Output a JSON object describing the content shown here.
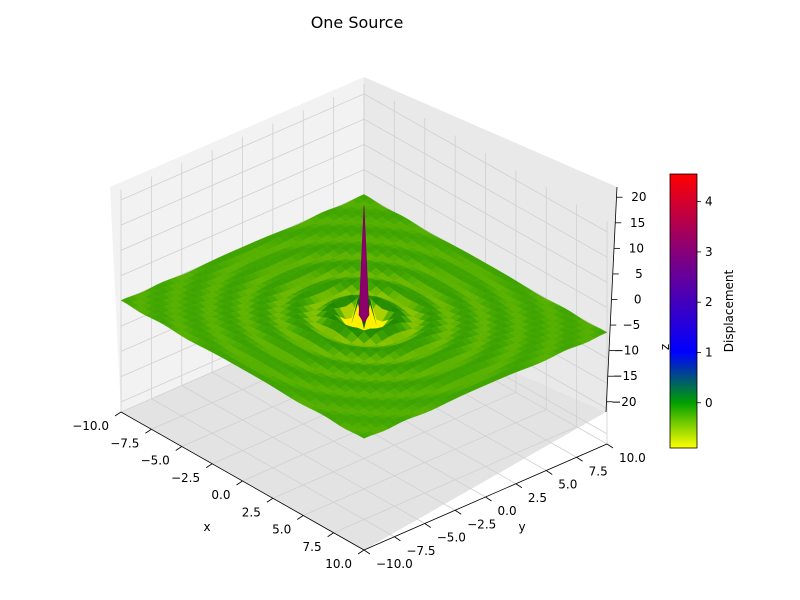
{
  "chart_data": {
    "type": "surface3d",
    "title": "One Source",
    "xlabel": "x",
    "ylabel": "y",
    "zlabel": "z",
    "xlim": [
      -10,
      10
    ],
    "ylim": [
      -10,
      10
    ],
    "zlim": [
      -22,
      22
    ],
    "x_ticks": [
      "−10.0",
      "−7.5",
      "−5.0",
      "−2.5",
      "0.0",
      "2.5",
      "5.0",
      "7.5",
      "10.0"
    ],
    "y_ticks": [
      "−10.0",
      "−7.5",
      "−5.0",
      "−2.5",
      "0.0",
      "2.5",
      "5.0",
      "7.5",
      "10.0"
    ],
    "z_ticks": [
      "−20",
      "−15",
      "−10",
      "−5",
      "0",
      "5",
      "10",
      "15",
      "20"
    ],
    "x_tick_values": [
      -10,
      -7.5,
      -5,
      -2.5,
      0,
      2.5,
      5,
      7.5,
      10
    ],
    "y_tick_values": [
      -10,
      -7.5,
      -5,
      -2.5,
      0,
      2.5,
      5,
      7.5,
      10
    ],
    "z_tick_values": [
      -20,
      -15,
      -10,
      -5,
      0,
      5,
      10,
      15,
      20
    ],
    "surface": {
      "description": "Single point source at origin; ripples decaying with distance",
      "peak": {
        "x": 0,
        "y": 0,
        "z": 22
      },
      "ring_wavelength": 2.0
    },
    "colorbar": {
      "label": "Displacement",
      "range": [
        -0.9,
        4.55
      ],
      "ticks": [
        "0",
        "1",
        "2",
        "3",
        "4"
      ],
      "tick_values": [
        0,
        1,
        2,
        3,
        4
      ],
      "colors": [
        "#ffff00",
        "#00a000",
        "#0000ff",
        "#800080",
        "#ff0000"
      ]
    },
    "grid": true
  }
}
